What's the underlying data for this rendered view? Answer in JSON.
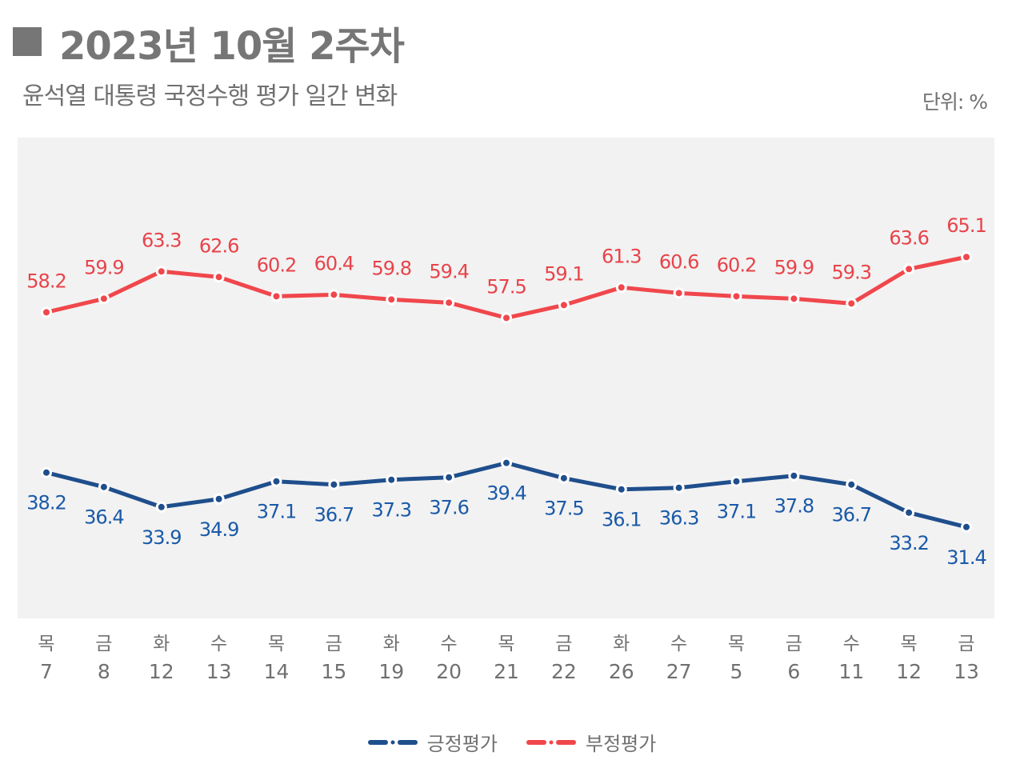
{
  "title": "2023년 10월 2주차",
  "subtitle": "윤석열 대통령 국정수행 평가 일간 변화",
  "unit": "단위: %",
  "chart_data": {
    "type": "line",
    "title": "윤석열 대통령 국정수행 평가 일간 변화",
    "ylim": [
      20,
      80
    ],
    "grid": false,
    "legend_placement": "bottom",
    "categories": [
      {
        "day": "목",
        "date": "7"
      },
      {
        "day": "금",
        "date": "8"
      },
      {
        "day": "화",
        "date": "12"
      },
      {
        "day": "수",
        "date": "13"
      },
      {
        "day": "목",
        "date": "14"
      },
      {
        "day": "금",
        "date": "15"
      },
      {
        "day": "화",
        "date": "19"
      },
      {
        "day": "수",
        "date": "20"
      },
      {
        "day": "목",
        "date": "21"
      },
      {
        "day": "금",
        "date": "22"
      },
      {
        "day": "화",
        "date": "26"
      },
      {
        "day": "수",
        "date": "27"
      },
      {
        "day": "목",
        "date": "5"
      },
      {
        "day": "금",
        "date": "6"
      },
      {
        "day": "수",
        "date": "11"
      },
      {
        "day": "목",
        "date": "12"
      },
      {
        "day": "금",
        "date": "13"
      }
    ],
    "series": [
      {
        "name": "긍정평가",
        "color": "#1f4e8c",
        "label_color": "#1a5aa8",
        "values": [
          38.2,
          36.4,
          33.9,
          34.9,
          37.1,
          36.7,
          37.3,
          37.6,
          39.4,
          37.5,
          36.1,
          36.3,
          37.1,
          37.8,
          36.7,
          33.2,
          31.4
        ]
      },
      {
        "name": "부정평가",
        "color": "#f0474c",
        "label_color": "#e8434a",
        "values": [
          58.2,
          59.9,
          63.3,
          62.6,
          60.2,
          60.4,
          59.8,
          59.4,
          57.5,
          59.1,
          61.3,
          60.6,
          60.2,
          59.9,
          59.3,
          63.6,
          65.1
        ]
      }
    ],
    "plot_background": "#f2f2f2"
  }
}
